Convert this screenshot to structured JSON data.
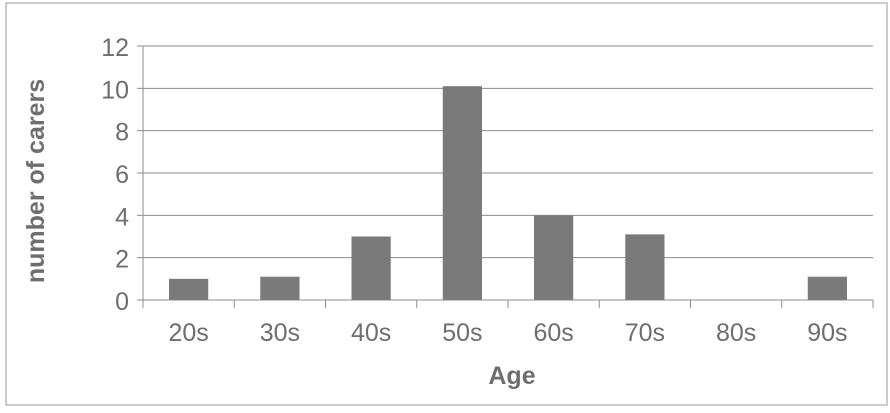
{
  "chart_data": {
    "type": "bar",
    "title": "",
    "xlabel": "Age",
    "ylabel": "number of carers",
    "categories": [
      "20s",
      "30s",
      "40s",
      "50s",
      "60s",
      "70s",
      "80s",
      "90s"
    ],
    "values": [
      1,
      1.1,
      3,
      10.1,
      4,
      3.1,
      0,
      1.1
    ],
    "ylim": [
      0,
      12
    ],
    "yticks": [
      "0",
      "2",
      "4",
      "6",
      "8",
      "10",
      "12"
    ],
    "grid": true,
    "legend": "none",
    "colors": {
      "bar": "#7a7a7a",
      "grid": "#8c8c8c",
      "text": "#6e6e6e",
      "label": "#6e6e6e",
      "frame": "#9a9a9a"
    }
  }
}
